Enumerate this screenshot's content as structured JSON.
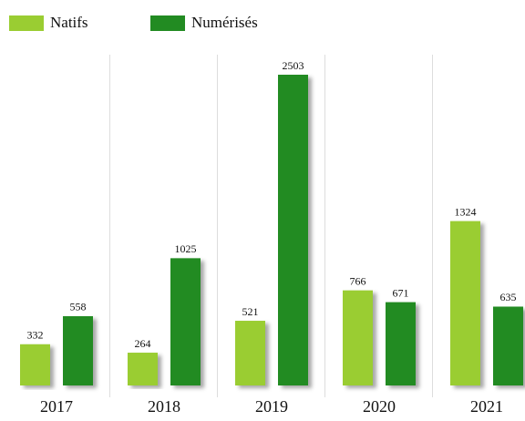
{
  "chart_data": {
    "type": "bar",
    "categories": [
      "2017",
      "2018",
      "2019",
      "2020",
      "2021"
    ],
    "series": [
      {
        "name": "Natifs",
        "color": "#9acd32",
        "values": [
          332,
          264,
          521,
          766,
          1324
        ]
      },
      {
        "name": "Numérisés",
        "color": "#228b22",
        "values": [
          558,
          1025,
          2503,
          671,
          635
        ]
      }
    ]
  }
}
